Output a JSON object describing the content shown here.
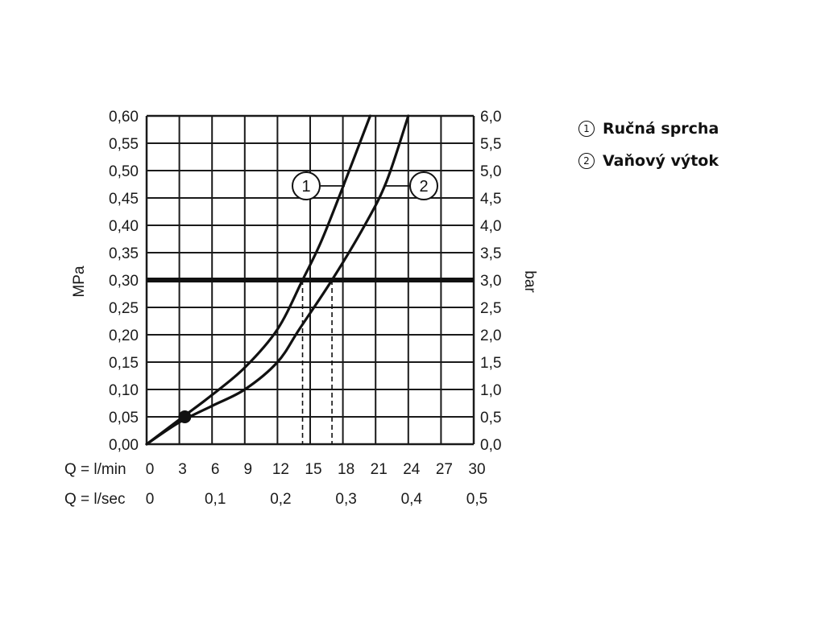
{
  "chart_data": {
    "type": "line",
    "xlabel_lmin": "Q = l/min",
    "xlabel_lsec": "Q = l/sec",
    "ylabel_left": "MPa",
    "ylabel_right": "bar",
    "xlim": [
      0,
      30
    ],
    "ylim": [
      0,
      0.6
    ],
    "grid": true,
    "x_ticks_lmin": [
      "0",
      "3",
      "6",
      "9",
      "12",
      "15",
      "18",
      "21",
      "24",
      "27",
      "30"
    ],
    "x_ticks_lsec": [
      "0",
      "0,1",
      "0,2",
      "0,3",
      "0,4",
      "0,5"
    ],
    "y_ticks_left": [
      "0,00",
      "0,05",
      "0,10",
      "0,15",
      "0,20",
      "0,25",
      "0,30",
      "0,35",
      "0,40",
      "0,45",
      "0,50",
      "0,55",
      "0,60"
    ],
    "y_ticks_right": [
      "0,0",
      "0,5",
      "1,0",
      "1,5",
      "2,0",
      "2,5",
      "3,0",
      "3,5",
      "4,0",
      "4,5",
      "5,0",
      "5,5",
      "6,0"
    ],
    "reference_line_y": 0.3,
    "marker_point": {
      "x": 3.5,
      "y": 0.05
    },
    "series": [
      {
        "name": "1",
        "x": [
          0,
          3,
          6,
          9,
          12,
          14.3,
          16,
          18,
          20.5
        ],
        "y": [
          0,
          0.045,
          0.09,
          0.14,
          0.21,
          0.3,
          0.37,
          0.47,
          0.6
        ],
        "drop_line_x": 14.3
      },
      {
        "name": "2",
        "x": [
          0,
          3,
          6,
          9,
          12,
          14,
          17,
          20,
          22,
          24
        ],
        "y": [
          0,
          0.04,
          0.07,
          0.1,
          0.15,
          0.21,
          0.3,
          0.4,
          0.48,
          0.6
        ],
        "drop_line_x": 17
      }
    ]
  },
  "legend": [
    {
      "num": "1",
      "label": "Ručná sprcha"
    },
    {
      "num": "2",
      "label": "Vaňový výtok"
    }
  ]
}
